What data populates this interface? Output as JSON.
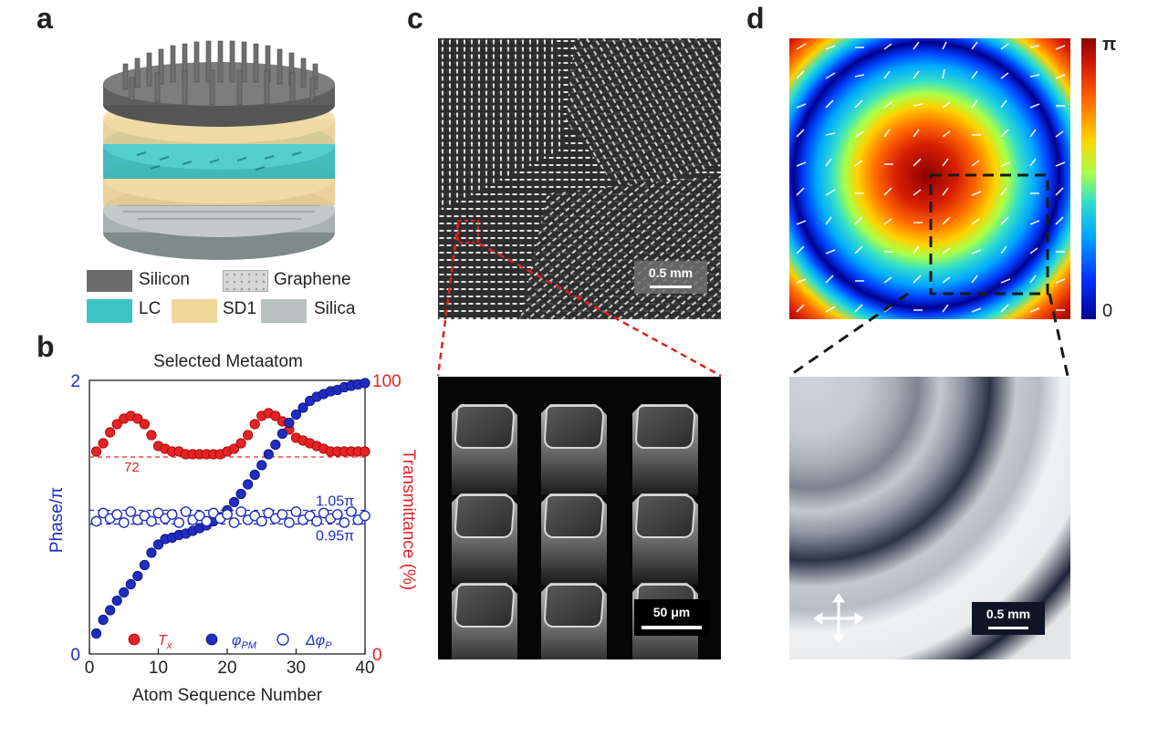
{
  "panel_labels": {
    "a": "a",
    "b": "b",
    "c": "c",
    "d": "d"
  },
  "legend_a": {
    "silicon": "Silicon",
    "graphene": "Graphene",
    "lc": "LC",
    "sd1": "SD1",
    "silica": "Silica"
  },
  "colors": {
    "silicon": "#6b6b6b",
    "graphene": "#cfcfcf",
    "lc": "#3cc4c4",
    "sd1": "#f0d79a",
    "silica": "#b9c0c0",
    "phase": "#1f2dbf",
    "transmittance": "#e32424"
  },
  "chart_data": {
    "type": "scatter",
    "title": "Selected Metaatom",
    "xlabel": "Atom Sequence Number",
    "ylabel_left": "Phase/π",
    "ylabel_right": "Transmittance (%)",
    "xlim": [
      0,
      40
    ],
    "xticks": [
      "0",
      "10",
      "20",
      "30",
      "40"
    ],
    "ylim_left": [
      0,
      2
    ],
    "yticks_left": [
      "0",
      "2"
    ],
    "ylim_right": [
      0,
      100
    ],
    "yticks_right": [
      "0",
      "100"
    ],
    "ref_lines": {
      "transmittance_72": {
        "value": 72,
        "label": "72"
      },
      "phase_upper": {
        "value": 1.05,
        "label": "1.05π"
      },
      "phase_lower": {
        "value": 0.95,
        "label": "0.95π"
      }
    },
    "x": [
      1,
      2,
      3,
      4,
      5,
      6,
      7,
      8,
      9,
      10,
      11,
      12,
      13,
      14,
      15,
      16,
      17,
      18,
      19,
      20,
      21,
      22,
      23,
      24,
      25,
      26,
      27,
      28,
      29,
      30,
      31,
      32,
      33,
      34,
      35,
      36,
      37,
      38,
      39,
      40
    ],
    "series": [
      {
        "name": "T_x",
        "axis": "right",
        "marker": "filled-red",
        "values": [
          74,
          77,
          81,
          84,
          86,
          87,
          86,
          84,
          80,
          76,
          75,
          74,
          74,
          73,
          73,
          73,
          73,
          73,
          73,
          74,
          75,
          77,
          80,
          84,
          87,
          88,
          87,
          85,
          82,
          79,
          78,
          77,
          76,
          75,
          74,
          74,
          74,
          74,
          74,
          74
        ]
      },
      {
        "name": "φ_PM",
        "axis": "left",
        "marker": "filled-blue",
        "values": [
          0.15,
          0.25,
          0.32,
          0.39,
          0.45,
          0.51,
          0.57,
          0.65,
          0.74,
          0.8,
          0.84,
          0.85,
          0.87,
          0.88,
          0.9,
          0.92,
          0.94,
          0.97,
          1.0,
          1.05,
          1.11,
          1.17,
          1.24,
          1.31,
          1.38,
          1.46,
          1.53,
          1.61,
          1.69,
          1.75,
          1.8,
          1.85,
          1.88,
          1.9,
          1.92,
          1.93,
          1.95,
          1.96,
          1.97,
          1.98
        ]
      },
      {
        "name": "Δφ_P",
        "axis": "left",
        "marker": "open-blue",
        "values": [
          0.97,
          1.03,
          0.99,
          1.02,
          0.96,
          1.04,
          0.98,
          1.01,
          0.97,
          1.03,
          0.99,
          1.02,
          0.96,
          1.04,
          0.98,
          1.01,
          0.97,
          1.03,
          0.99,
          1.02,
          0.96,
          1.04,
          0.98,
          1.01,
          0.97,
          1.03,
          0.99,
          1.02,
          0.96,
          1.04,
          0.98,
          1.01,
          0.97,
          1.03,
          0.99,
          1.02,
          0.96,
          1.04,
          0.98,
          1.01
        ]
      }
    ],
    "legend": {
      "tx": "T",
      "tx_sub": "x",
      "phi": "φ",
      "phi_sub": "PM",
      "dphi": "Δφ",
      "dphi_sub": "P"
    }
  },
  "panel_c": {
    "scale_top": "0.5 mm",
    "scale_bottom": "50 μm"
  },
  "panel_d": {
    "colorbar_max": "π",
    "colorbar_min": "0",
    "scale": "0.5 mm"
  }
}
